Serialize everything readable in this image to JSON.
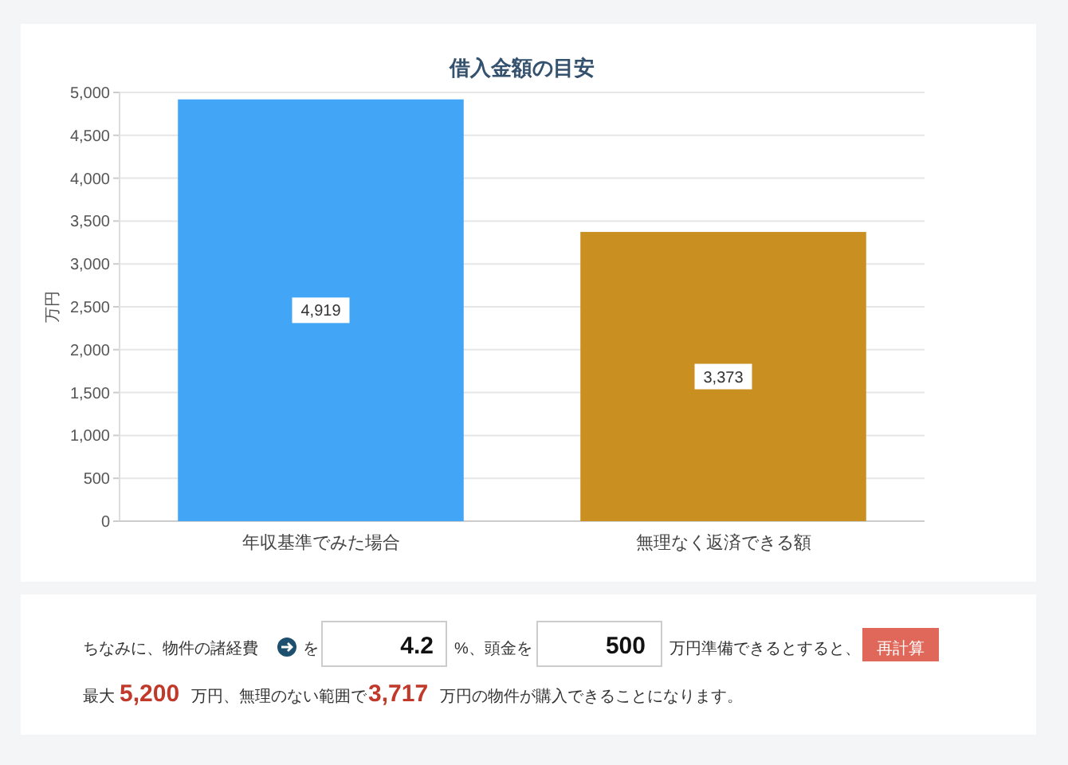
{
  "chart_data": {
    "type": "bar",
    "title": "借入金額の目安",
    "ylabel": "万円",
    "categories": [
      "年収基準でみた場合",
      "無理なく返済できる額"
    ],
    "values": [
      4919,
      3373
    ],
    "colors": [
      "#42a5f5",
      "#c98f20"
    ],
    "ylim": [
      0,
      5000
    ],
    "yticks": [
      {
        "value": 0,
        "label": "0"
      },
      {
        "value": 500,
        "label": "500"
      },
      {
        "value": 1000,
        "label": "1,000"
      },
      {
        "value": 1500,
        "label": "1,500"
      },
      {
        "value": 2000,
        "label": "2,000"
      },
      {
        "value": 2500,
        "label": "2,500"
      },
      {
        "value": 3000,
        "label": "3,000"
      },
      {
        "value": 3500,
        "label": "3,500"
      },
      {
        "value": 4000,
        "label": "4,000"
      },
      {
        "value": 4500,
        "label": "4,500"
      },
      {
        "value": 5000,
        "label": "5,000"
      }
    ],
    "grid": "y",
    "value_labels": [
      "4,919",
      "3,373"
    ],
    "annotations": [
      "ちなみに、物件の諸経費",
      "を",
      "4.2",
      "%、頭金を",
      "500",
      "万円準備できるとすると、",
      "再計算",
      "最大",
      "5,200",
      "万円、無理のない範囲で",
      "3,717",
      "万円の物件が購入できることになります。"
    ]
  }
}
